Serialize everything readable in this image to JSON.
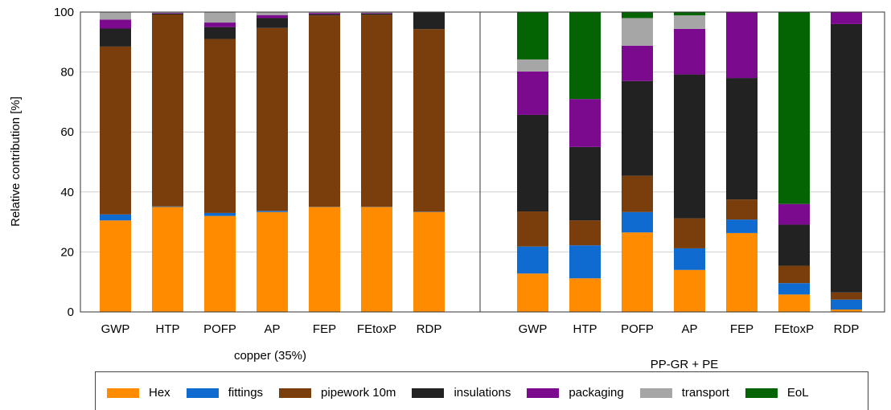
{
  "chart_data": {
    "type": "bar",
    "stacked": true,
    "ylabel": "Relative contribution [%]",
    "ylim": [
      0,
      100
    ],
    "yticks": [
      "0",
      "20",
      "40",
      "60",
      "80",
      "100"
    ],
    "grid": true,
    "legend_position": "bottom",
    "categories": [
      "GWP",
      "HTP",
      "POFP",
      "AP",
      "FEP",
      "FEtoxP",
      "RDP"
    ],
    "series_order": [
      "Hex",
      "fittings",
      "pipework 10m",
      "insulations",
      "packaging",
      "transport",
      "EoL"
    ],
    "colors": [
      "#ff8c00",
      "#0f6bd0",
      "#7a3d0c",
      "#222222",
      "#7b0a8e",
      "#a6a6a6",
      "#046404"
    ],
    "panels": [
      {
        "label": "copper (35%)",
        "series": [
          {
            "name": "Hex",
            "values": [
              30.5,
              35.0,
              32.0,
              33.3,
              35.0,
              35.0,
              33.3
            ]
          },
          {
            "name": "fittings",
            "values": [
              2.0,
              0.2,
              1.0,
              0.4,
              0.1,
              0.1,
              0.1
            ]
          },
          {
            "name": "pipework 10m",
            "values": [
              56.0,
              64.0,
              58.0,
              61.0,
              63.8,
              64.0,
              60.9
            ]
          },
          {
            "name": "insulations",
            "values": [
              6.0,
              0.3,
              4.0,
              3.3,
              0.4,
              0.4,
              5.7
            ]
          },
          {
            "name": "packaging",
            "values": [
              3.0,
              0.2,
              1.5,
              1.0,
              0.4,
              0.2,
              0.0
            ]
          },
          {
            "name": "transport",
            "values": [
              2.5,
              0.3,
              3.5,
              1.0,
              0.3,
              0.3,
              0.0
            ]
          },
          {
            "name": "EoL",
            "values": [
              0.0,
              0.0,
              0.0,
              0.0,
              0.0,
              0.0,
              0.0
            ]
          }
        ]
      },
      {
        "label": "PP-GR + PE",
        "series": [
          {
            "name": "Hex",
            "values": [
              12.8,
              11.2,
              26.5,
              14.0,
              26.3,
              5.8,
              0.8
            ]
          },
          {
            "name": "fittings",
            "values": [
              9.0,
              11.0,
              6.8,
              7.2,
              4.5,
              3.8,
              3.3
            ]
          },
          {
            "name": "pipework 10m",
            "values": [
              11.7,
              8.3,
              12.1,
              10.0,
              6.7,
              5.8,
              2.4
            ]
          },
          {
            "name": "insulations",
            "values": [
              32.2,
              24.5,
              31.6,
              48.0,
              40.5,
              13.7,
              89.5
            ]
          },
          {
            "name": "packaging",
            "values": [
              14.5,
              16.0,
              11.8,
              15.2,
              22.0,
              6.9,
              4.0
            ]
          },
          {
            "name": "transport",
            "values": [
              4.0,
              0.0,
              9.2,
              4.5,
              0.0,
              0.0,
              0.0
            ]
          },
          {
            "name": "EoL",
            "values": [
              15.8,
              29.0,
              2.0,
              1.1,
              0.0,
              64.0,
              0.0
            ]
          }
        ]
      }
    ]
  }
}
